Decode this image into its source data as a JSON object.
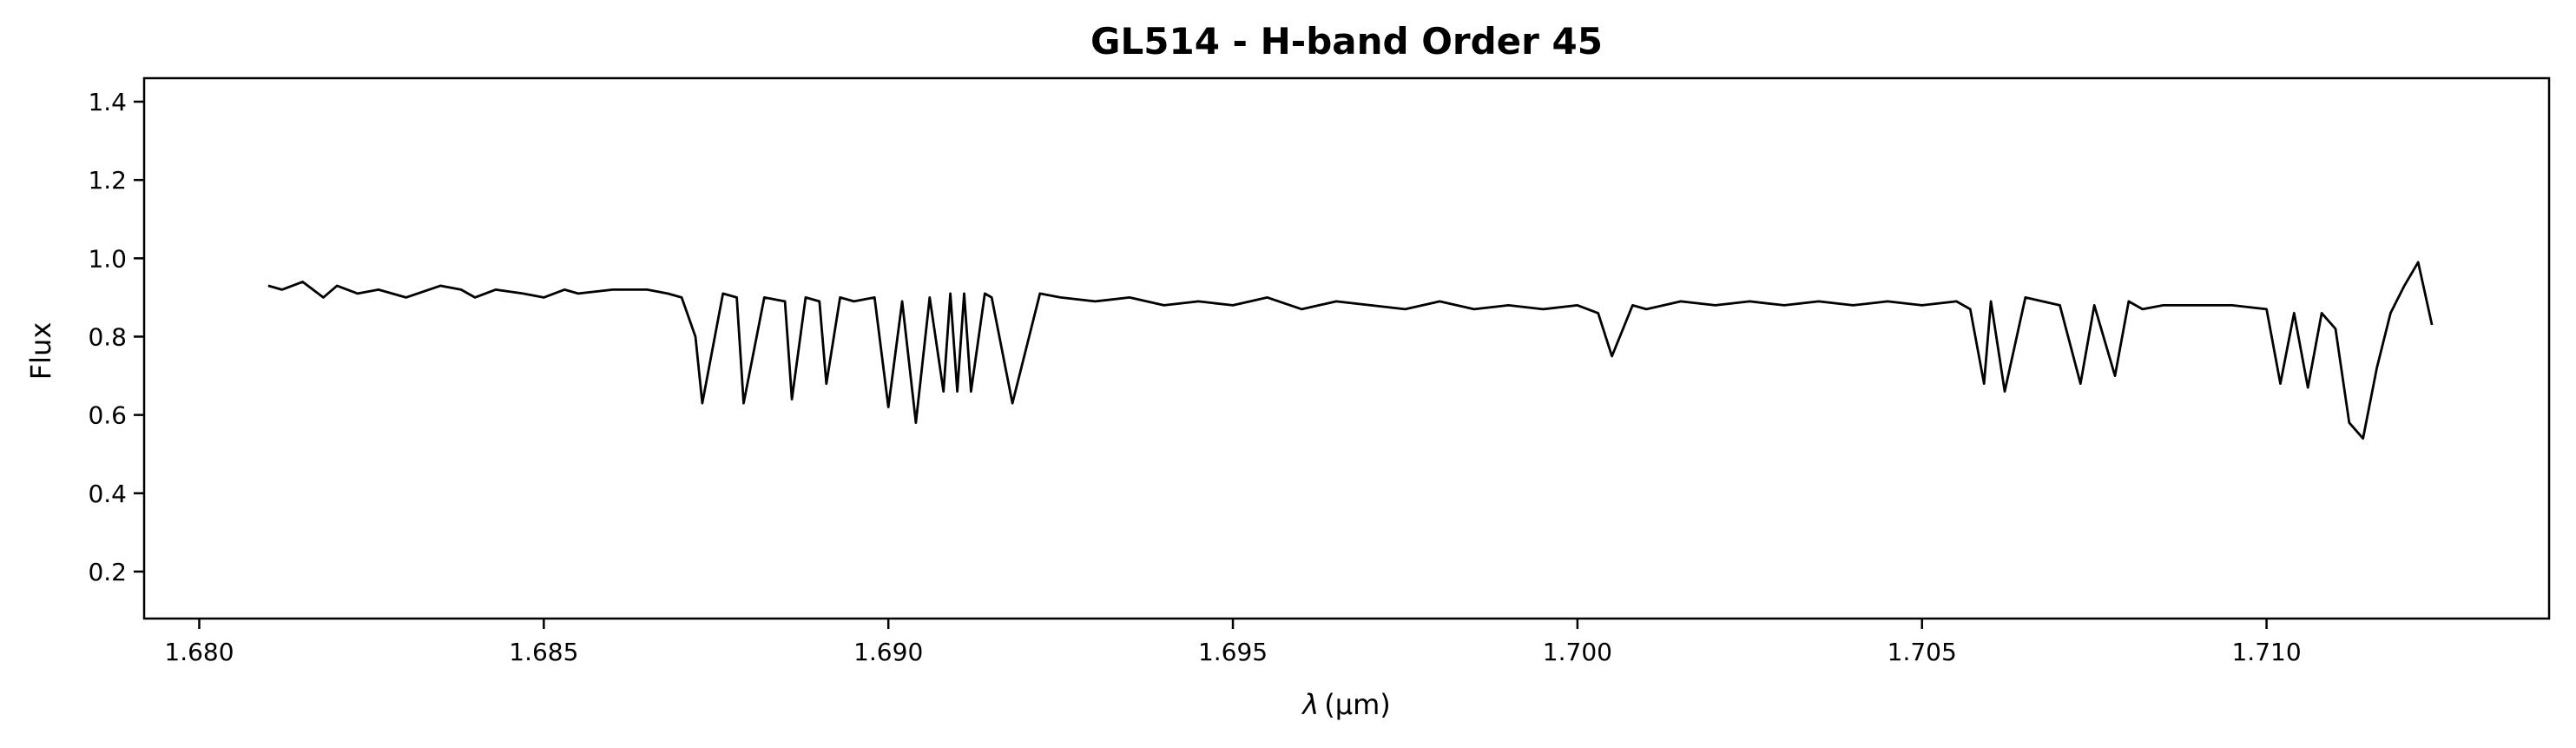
{
  "chart_data": {
    "type": "line",
    "title": "GL514 - H-band Order 45",
    "xlabel_symbol": "λ",
    "xlabel_unit": "(μm)",
    "ylabel": "Flux",
    "xlim": [
      1.6792,
      1.7141
    ],
    "ylim": [
      0.08,
      1.46
    ],
    "xticks": [
      1.68,
      1.685,
      1.69,
      1.695,
      1.7,
      1.705,
      1.71
    ],
    "xtick_labels": [
      "1.680",
      "1.685",
      "1.690",
      "1.695",
      "1.700",
      "1.705",
      "1.710"
    ],
    "yticks": [
      0.2,
      0.4,
      0.6,
      0.8,
      1.0,
      1.2,
      1.4
    ],
    "ytick_labels": [
      "0.2",
      "0.4",
      "0.6",
      "0.8",
      "1.0",
      "1.2",
      "1.4"
    ],
    "grid": false,
    "legend": "none",
    "line_color": "#000000",
    "series": [
      {
        "x": [
          1.681,
          1.6812,
          1.6815,
          1.6818,
          1.682,
          1.6823,
          1.6826,
          1.683,
          1.6835,
          1.6838,
          1.684,
          1.6843,
          1.6847,
          1.685,
          1.6853,
          1.6855,
          1.686,
          1.6865,
          1.6868,
          1.687,
          1.6872,
          1.6873,
          1.6876,
          1.6878,
          1.6879,
          1.6882,
          1.6885,
          1.6886,
          1.6888,
          1.689,
          1.6891,
          1.6893,
          1.6895,
          1.6898,
          1.69,
          1.6902,
          1.6904,
          1.6906,
          1.6908,
          1.6909,
          1.691,
          1.6911,
          1.6912,
          1.6914,
          1.6915,
          1.6918,
          1.6922,
          1.6925,
          1.693,
          1.6935,
          1.694,
          1.6945,
          1.695,
          1.6955,
          1.696,
          1.6965,
          1.697,
          1.6975,
          1.698,
          1.6985,
          1.699,
          1.6995,
          1.7,
          1.7003,
          1.7005,
          1.7008,
          1.701,
          1.7015,
          1.702,
          1.7025,
          1.703,
          1.7035,
          1.704,
          1.7045,
          1.705,
          1.7055,
          1.7057,
          1.7059,
          1.706,
          1.7062,
          1.7065,
          1.707,
          1.7073,
          1.7075,
          1.7078,
          1.708,
          1.7082,
          1.7085,
          1.709,
          1.7095,
          1.71,
          1.7102,
          1.7104,
          1.7106,
          1.7108,
          1.711,
          1.7112,
          1.7114,
          1.7116,
          1.7118,
          1.712,
          1.7122,
          1.7124
        ],
        "y": [
          0.93,
          0.92,
          0.94,
          0.9,
          0.93,
          0.91,
          0.92,
          0.9,
          0.93,
          0.92,
          0.9,
          0.92,
          0.91,
          0.9,
          0.92,
          0.91,
          0.92,
          0.92,
          0.91,
          0.9,
          0.8,
          0.63,
          0.91,
          0.9,
          0.63,
          0.9,
          0.89,
          0.64,
          0.9,
          0.89,
          0.68,
          0.9,
          0.89,
          0.9,
          0.62,
          0.89,
          0.58,
          0.9,
          0.66,
          0.91,
          0.66,
          0.91,
          0.66,
          0.91,
          0.9,
          0.63,
          0.91,
          0.9,
          0.89,
          0.9,
          0.88,
          0.89,
          0.88,
          0.9,
          0.87,
          0.89,
          0.88,
          0.87,
          0.89,
          0.87,
          0.88,
          0.87,
          0.88,
          0.86,
          0.75,
          0.88,
          0.87,
          0.89,
          0.88,
          0.89,
          0.88,
          0.89,
          0.88,
          0.89,
          0.88,
          0.89,
          0.87,
          0.68,
          0.89,
          0.66,
          0.9,
          0.88,
          0.68,
          0.88,
          0.7,
          0.89,
          0.87,
          0.88,
          0.88,
          0.88,
          0.87,
          0.68,
          0.86,
          0.67,
          0.86,
          0.82,
          0.58,
          0.54,
          0.72,
          0.86,
          0.93,
          0.99,
          0.83
        ]
      }
    ]
  }
}
